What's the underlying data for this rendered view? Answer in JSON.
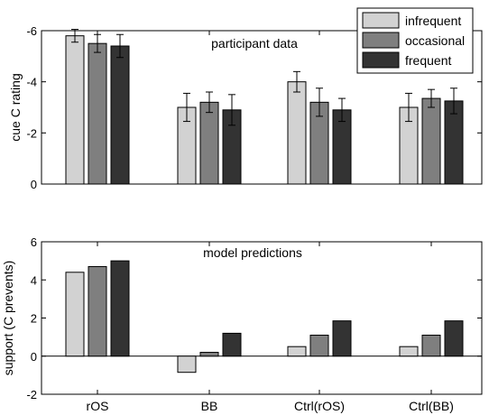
{
  "chart_data": [
    {
      "type": "bar",
      "title": "participant data",
      "ylabel": "cue C rating",
      "categories": [
        "rOS",
        "BB",
        "Ctrl(rOS)",
        "Ctrl(BB)"
      ],
      "ylim": [
        0,
        -6
      ],
      "yticks": [
        0,
        -2,
        -4,
        -6
      ],
      "ytick_labels": [
        "0",
        "-2",
        "-4",
        "-6"
      ],
      "error_bars": true,
      "series": [
        {
          "name": "infrequent",
          "values": [
            -5.8,
            -3.0,
            -4.0,
            -3.0
          ],
          "errors": [
            0.25,
            0.55,
            0.4,
            0.55
          ]
        },
        {
          "name": "occasional",
          "values": [
            -5.5,
            -3.2,
            -3.2,
            -3.35
          ],
          "errors": [
            0.35,
            0.4,
            0.55,
            0.35
          ]
        },
        {
          "name": "frequent",
          "values": [
            -5.4,
            -2.9,
            -2.9,
            -3.25
          ],
          "errors": [
            0.45,
            0.6,
            0.45,
            0.5
          ]
        }
      ],
      "legend_position": "top-right"
    },
    {
      "type": "bar",
      "title": "model predictions",
      "ylabel": "support (C prevents)",
      "xlabel": "",
      "categories": [
        "rOS",
        "BB",
        "Ctrl(rOS)",
        "Ctrl(BB)"
      ],
      "ylim": [
        -2,
        6
      ],
      "yticks": [
        -2,
        0,
        2,
        4,
        6
      ],
      "ytick_labels": [
        "-2",
        "0",
        "2",
        "4",
        "6"
      ],
      "series": [
        {
          "name": "infrequent",
          "values": [
            4.4,
            -0.85,
            0.5,
            0.5
          ]
        },
        {
          "name": "occasional",
          "values": [
            4.7,
            0.2,
            1.1,
            1.1
          ]
        },
        {
          "name": "frequent",
          "values": [
            5.0,
            1.2,
            1.85,
            1.85
          ]
        }
      ]
    }
  ],
  "colors": {
    "infrequent": "#d2d2d2",
    "occasional": "#7f7f7f",
    "frequent": "#333333"
  }
}
